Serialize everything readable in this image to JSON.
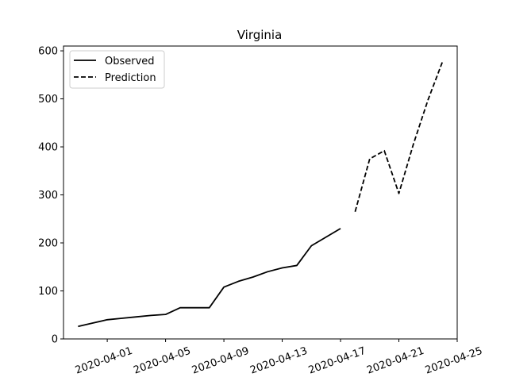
{
  "chart_data": {
    "type": "line",
    "title": "Virginia",
    "xlabel": "",
    "ylabel": "",
    "x_axis": "date",
    "xlim": [
      "2020-03-29",
      "2020-04-25"
    ],
    "ylim": [
      0,
      610
    ],
    "x_ticks": [
      "2020-04-01",
      "2020-04-05",
      "2020-04-09",
      "2020-04-13",
      "2020-04-17",
      "2020-04-21",
      "2020-04-25"
    ],
    "y_ticks": [
      0,
      100,
      200,
      300,
      400,
      500,
      600
    ],
    "grid": false,
    "legend_position": "upper-left",
    "series": [
      {
        "name": "Observed",
        "style": "solid",
        "color": "#000000",
        "points": [
          {
            "x": "2020-03-30",
            "y": 26
          },
          {
            "x": "2020-03-31",
            "y": 33
          },
          {
            "x": "2020-04-01",
            "y": 40
          },
          {
            "x": "2020-04-02",
            "y": 43
          },
          {
            "x": "2020-04-03",
            "y": 46
          },
          {
            "x": "2020-04-04",
            "y": 49
          },
          {
            "x": "2020-04-05",
            "y": 51
          },
          {
            "x": "2020-04-06",
            "y": 65
          },
          {
            "x": "2020-04-07",
            "y": 65
          },
          {
            "x": "2020-04-08",
            "y": 65
          },
          {
            "x": "2020-04-09",
            "y": 108
          },
          {
            "x": "2020-04-10",
            "y": 120
          },
          {
            "x": "2020-04-11",
            "y": 129
          },
          {
            "x": "2020-04-12",
            "y": 140
          },
          {
            "x": "2020-04-13",
            "y": 148
          },
          {
            "x": "2020-04-14",
            "y": 153
          },
          {
            "x": "2020-04-15",
            "y": 194
          },
          {
            "x": "2020-04-16",
            "y": 212
          },
          {
            "x": "2020-04-17",
            "y": 230
          }
        ]
      },
      {
        "name": "Prediction",
        "style": "dashed",
        "color": "#000000",
        "points": [
          {
            "x": "2020-04-18",
            "y": 265
          },
          {
            "x": "2020-04-19",
            "y": 375
          },
          {
            "x": "2020-04-20",
            "y": 392
          },
          {
            "x": "2020-04-21",
            "y": 303
          },
          {
            "x": "2020-04-22",
            "y": 406
          },
          {
            "x": "2020-04-23",
            "y": 498
          },
          {
            "x": "2020-04-24",
            "y": 578
          }
        ]
      }
    ]
  }
}
